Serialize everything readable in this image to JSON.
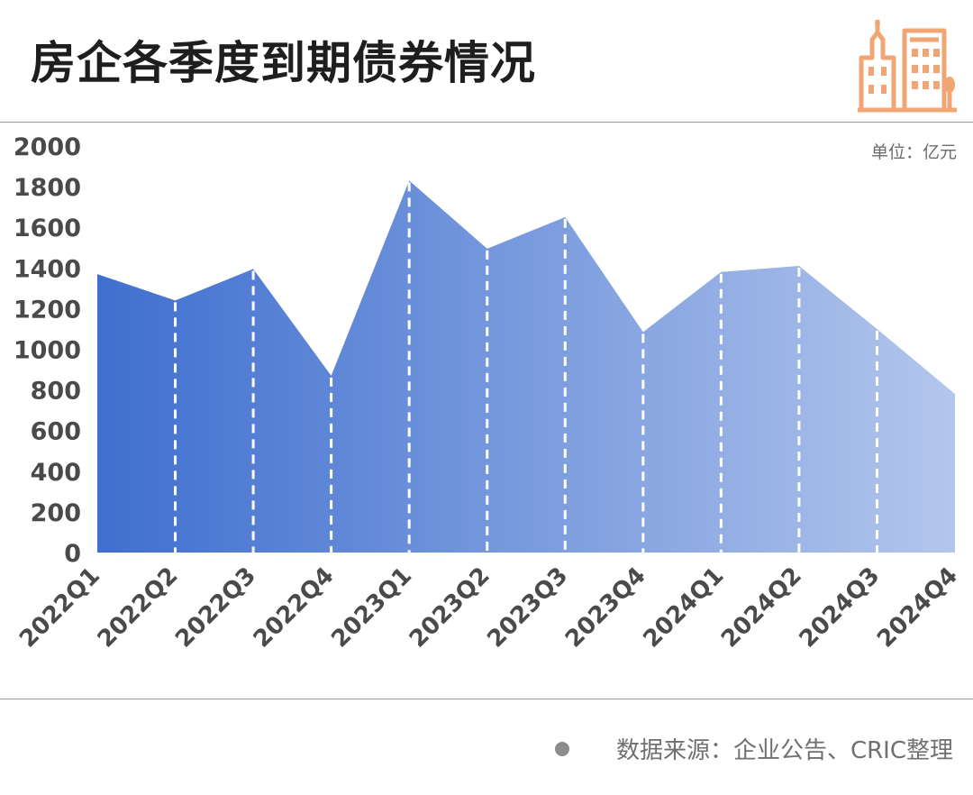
{
  "title": "房企各季度到期债券情况",
  "unit": "单位：亿元",
  "source": "数据来源：企业公告、CRIC整理",
  "colors": {
    "area_left": "#3f6fcf",
    "area_right": "#b3c6ec",
    "logo": "#f0a674",
    "axis_text": "#4a4a4a"
  },
  "chart_data": {
    "type": "area",
    "title": "房企各季度到期债券情况",
    "ylabel": "单位：亿元",
    "ylim": [
      0,
      2000
    ],
    "yticks": [
      0,
      200,
      400,
      600,
      800,
      1000,
      1200,
      1400,
      1600,
      1800,
      2000
    ],
    "grid": false,
    "categories": [
      "2022Q1",
      "2022Q2",
      "2022Q3",
      "2022Q4",
      "2023Q1",
      "2023Q2",
      "2023Q3",
      "2023Q4",
      "2024Q1",
      "2024Q2",
      "2024Q3",
      "2024Q4"
    ],
    "values": [
      1370,
      1240,
      1395,
      870,
      1830,
      1495,
      1650,
      1085,
      1380,
      1410,
      1100,
      780
    ]
  }
}
